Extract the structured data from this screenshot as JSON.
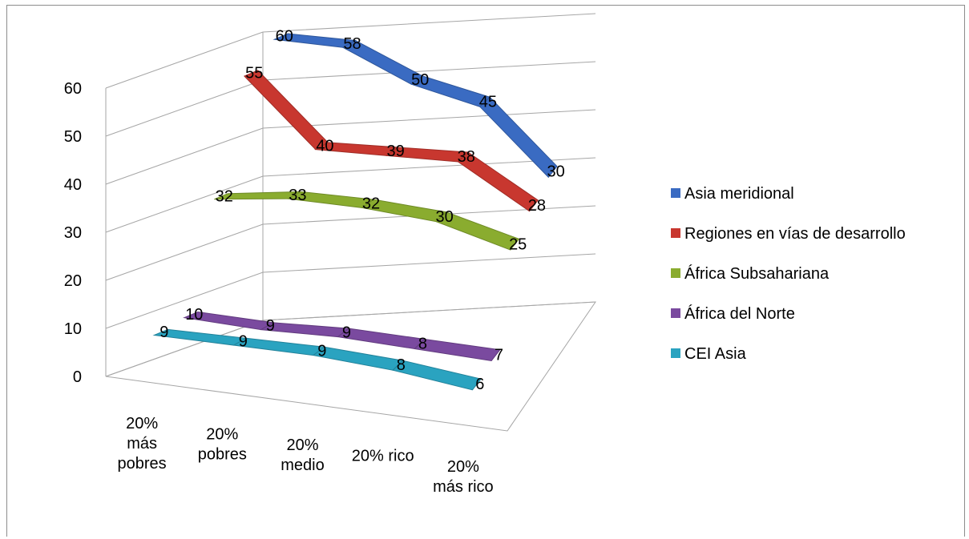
{
  "chart_data": {
    "type": "line",
    "title": "",
    "xlabel": "",
    "ylabel": "",
    "ylim": [
      0,
      60
    ],
    "yticks": [
      "0",
      "10",
      "20",
      "30",
      "40",
      "50",
      "60"
    ],
    "grid": true,
    "legend_position": "right",
    "categories": [
      "20% más pobres",
      "20% pobres",
      "20% medio",
      "20% rico",
      "20% más rico"
    ],
    "category_lines": [
      [
        "20%",
        "más",
        "pobres"
      ],
      [
        "20%",
        "pobres"
      ],
      [
        "20%",
        "medio"
      ],
      [
        "20% rico"
      ],
      [
        "20%",
        "más rico"
      ]
    ],
    "series": [
      {
        "name": "Asia  meridional",
        "color": "#3a6bc2",
        "values": [
          60,
          58,
          50,
          45,
          30
        ]
      },
      {
        "name": "Regiones en vías de desarrollo",
        "color": "#c8372f",
        "values": [
          55,
          40,
          39,
          38,
          28
        ]
      },
      {
        "name": "África Subsahariana",
        "color": "#8aac2f",
        "values": [
          32,
          33,
          32,
          30,
          25
        ]
      },
      {
        "name": "África del Norte",
        "color": "#7a4a9f",
        "values": [
          10,
          9,
          9,
          8,
          7
        ]
      },
      {
        "name": "CEI Asia",
        "color": "#2aa3c0",
        "values": [
          9,
          9,
          9,
          8,
          6
        ]
      }
    ]
  }
}
